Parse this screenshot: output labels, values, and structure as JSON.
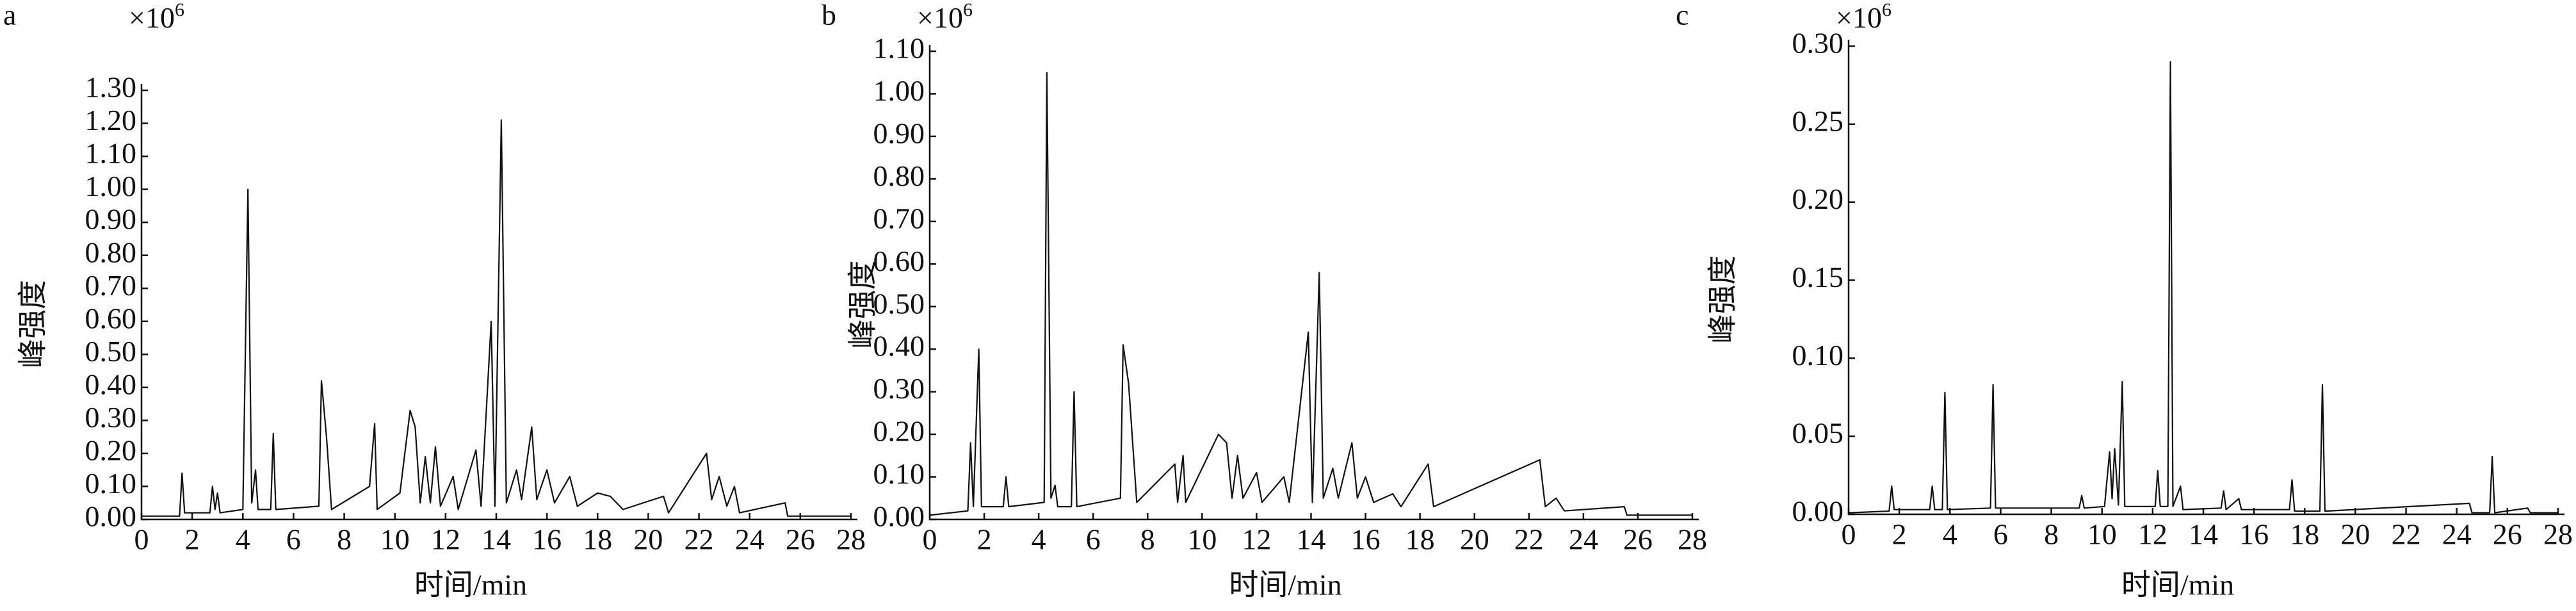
{
  "chart_data": [
    {
      "type": "line",
      "panel_label": "a",
      "y_multiplier": "×10",
      "y_multiplier_exponent": "6",
      "ylabel": "峰强度",
      "xlabel": "时间/min",
      "x": [
        0,
        1.5,
        1.6,
        1.7,
        2.7,
        2.8,
        2.9,
        3.0,
        3.1,
        4.0,
        4.2,
        4.35,
        4.5,
        4.6,
        5.1,
        5.2,
        5.3,
        7.0,
        7.1,
        7.3,
        7.5,
        9.0,
        9.2,
        9.3,
        10.2,
        10.6,
        10.8,
        11.0,
        11.2,
        11.4,
        11.6,
        11.8,
        12.3,
        12.5,
        13.2,
        13.4,
        13.8,
        13.95,
        14.2,
        14.4,
        14.8,
        15.0,
        15.4,
        15.6,
        16.0,
        16.3,
        16.9,
        17.2,
        18.0,
        18.5,
        19.0,
        20.6,
        20.8,
        22.3,
        22.5,
        22.8,
        23.1,
        23.4,
        23.6,
        25.4,
        25.5,
        28
      ],
      "series": [
        {
          "color": "#111111",
          "values": [
            0.01,
            0.01,
            0.14,
            0.02,
            0.02,
            0.1,
            0.03,
            0.08,
            0.02,
            0.03,
            1.0,
            0.05,
            0.15,
            0.03,
            0.03,
            0.26,
            0.03,
            0.04,
            0.42,
            0.25,
            0.03,
            0.1,
            0.29,
            0.03,
            0.08,
            0.33,
            0.28,
            0.05,
            0.19,
            0.05,
            0.22,
            0.04,
            0.13,
            0.03,
            0.21,
            0.04,
            0.6,
            0.04,
            1.21,
            0.05,
            0.15,
            0.06,
            0.28,
            0.06,
            0.15,
            0.05,
            0.13,
            0.04,
            0.08,
            0.07,
            0.03,
            0.07,
            0.02,
            0.2,
            0.06,
            0.13,
            0.04,
            0.1,
            0.02,
            0.05,
            0.01,
            0.01
          ]
        }
      ],
      "xlim": [
        0,
        28
      ],
      "xticks": [
        0,
        2,
        4,
        6,
        8,
        10,
        12,
        14,
        16,
        18,
        20,
        22,
        24,
        26,
        28
      ],
      "ylim": [
        0,
        1.3
      ],
      "yticks": [
        {
          "value": 0,
          "label": "0.00"
        },
        {
          "value": 0.1,
          "label": "0.10"
        },
        {
          "value": 0.2,
          "label": "0.20"
        },
        {
          "value": 0.3,
          "label": "0.30"
        },
        {
          "value": 0.4,
          "label": "0.40"
        },
        {
          "value": 0.5,
          "label": "0.50"
        },
        {
          "value": 0.6,
          "label": "0.60"
        },
        {
          "value": 0.7,
          "label": "0.70"
        },
        {
          "value": 0.8,
          "label": "0.80"
        },
        {
          "value": 0.9,
          "label": "0.90"
        },
        {
          "value": 1.0,
          "label": "1.00"
        },
        {
          "value": 1.1,
          "label": "1.10"
        },
        {
          "value": 1.2,
          "label": "1.20"
        },
        {
          "value": 1.3,
          "label": "1.30"
        }
      ]
    },
    {
      "type": "line",
      "panel_label": "b",
      "y_multiplier": "×10",
      "y_multiplier_exponent": "6",
      "ylabel": "峰强度",
      "xlabel": "时间/min",
      "x": [
        0,
        1.4,
        1.5,
        1.6,
        1.8,
        1.9,
        2.7,
        2.8,
        2.9,
        4.2,
        4.3,
        4.45,
        4.6,
        4.7,
        5.2,
        5.3,
        5.4,
        7.0,
        7.1,
        7.3,
        7.6,
        9.0,
        9.1,
        9.3,
        9.4,
        10.6,
        10.9,
        11.1,
        11.3,
        11.5,
        12.0,
        12.2,
        13.0,
        13.2,
        13.9,
        14.05,
        14.3,
        14.45,
        14.8,
        15.0,
        15.5,
        15.7,
        16.0,
        16.3,
        17.0,
        17.3,
        18.3,
        18.5,
        22.4,
        22.6,
        23.0,
        23.3,
        25.5,
        25.6,
        28
      ],
      "series": [
        {
          "color": "#111111",
          "values": [
            0.01,
            0.02,
            0.18,
            0.03,
            0.4,
            0.03,
            0.03,
            0.1,
            0.03,
            0.04,
            1.05,
            0.05,
            0.08,
            0.03,
            0.03,
            0.3,
            0.03,
            0.05,
            0.41,
            0.32,
            0.04,
            0.13,
            0.04,
            0.15,
            0.04,
            0.2,
            0.18,
            0.05,
            0.15,
            0.05,
            0.11,
            0.04,
            0.1,
            0.04,
            0.44,
            0.04,
            0.58,
            0.05,
            0.12,
            0.05,
            0.18,
            0.05,
            0.1,
            0.04,
            0.06,
            0.03,
            0.13,
            0.03,
            0.14,
            0.03,
            0.05,
            0.02,
            0.03,
            0.01,
            0.01
          ]
        }
      ],
      "xlim": [
        0,
        28
      ],
      "xticks": [
        0,
        2,
        4,
        6,
        8,
        10,
        12,
        14,
        16,
        18,
        20,
        22,
        24,
        26,
        28
      ],
      "ylim": [
        0,
        1.1
      ],
      "yticks": [
        {
          "value": 0,
          "label": "0.00"
        },
        {
          "value": 0.1,
          "label": "0.10"
        },
        {
          "value": 0.2,
          "label": "0.20"
        },
        {
          "value": 0.3,
          "label": "0.30"
        },
        {
          "value": 0.4,
          "label": "0.40"
        },
        {
          "value": 0.5,
          "label": "0.50"
        },
        {
          "value": 0.6,
          "label": "0.60"
        },
        {
          "value": 0.7,
          "label": "0.70"
        },
        {
          "value": 0.8,
          "label": "0.80"
        },
        {
          "value": 0.9,
          "label": "0.90"
        },
        {
          "value": 1.0,
          "label": "1.00"
        },
        {
          "value": 1.1,
          "label": "1.10"
        }
      ]
    },
    {
      "type": "line",
      "panel_label": "c",
      "y_multiplier": "×10",
      "y_multiplier_exponent": "6",
      "ylabel": "峰强度",
      "xlabel": "时间/min",
      "x": [
        0,
        1.6,
        1.7,
        1.8,
        3.2,
        3.3,
        3.4,
        3.7,
        3.8,
        3.9,
        5.6,
        5.7,
        5.8,
        9.1,
        9.2,
        9.3,
        10.1,
        10.3,
        10.4,
        10.5,
        10.65,
        10.8,
        10.9,
        12.1,
        12.2,
        12.3,
        12.6,
        12.7,
        12.8,
        13.1,
        13.2,
        14.7,
        14.8,
        14.9,
        15.4,
        15.5,
        17.4,
        17.5,
        17.6,
        18.6,
        18.7,
        18.8,
        24.5,
        24.6,
        25.3,
        25.4,
        25.5,
        26.8,
        26.9,
        28
      ],
      "series": [
        {
          "color": "#111111",
          "values": [
            0.001,
            0.002,
            0.018,
            0.003,
            0.003,
            0.018,
            0.003,
            0.003,
            0.078,
            0.003,
            0.004,
            0.083,
            0.004,
            0.004,
            0.012,
            0.004,
            0.005,
            0.04,
            0.01,
            0.042,
            0.006,
            0.085,
            0.005,
            0.005,
            0.028,
            0.005,
            0.005,
            0.29,
            0.005,
            0.018,
            0.003,
            0.004,
            0.015,
            0.003,
            0.01,
            0.003,
            0.003,
            0.022,
            0.002,
            0.002,
            0.083,
            0.002,
            0.007,
            0.001,
            0.001,
            0.037,
            0.001,
            0.004,
            0.001,
            0.001
          ]
        }
      ],
      "xlim": [
        0,
        28
      ],
      "xticks": [
        0,
        2,
        4,
        6,
        8,
        10,
        12,
        14,
        16,
        18,
        20,
        22,
        24,
        26,
        28
      ],
      "ylim": [
        0,
        0.3
      ],
      "yticks": [
        {
          "value": 0,
          "label": "0.00"
        },
        {
          "value": 0.05,
          "label": "0.05"
        },
        {
          "value": 0.1,
          "label": "0.10"
        },
        {
          "value": 0.15,
          "label": "0.15"
        },
        {
          "value": 0.2,
          "label": "0.20"
        },
        {
          "value": 0.25,
          "label": "0.25"
        },
        {
          "value": 0.3,
          "label": "0.30"
        }
      ]
    }
  ]
}
